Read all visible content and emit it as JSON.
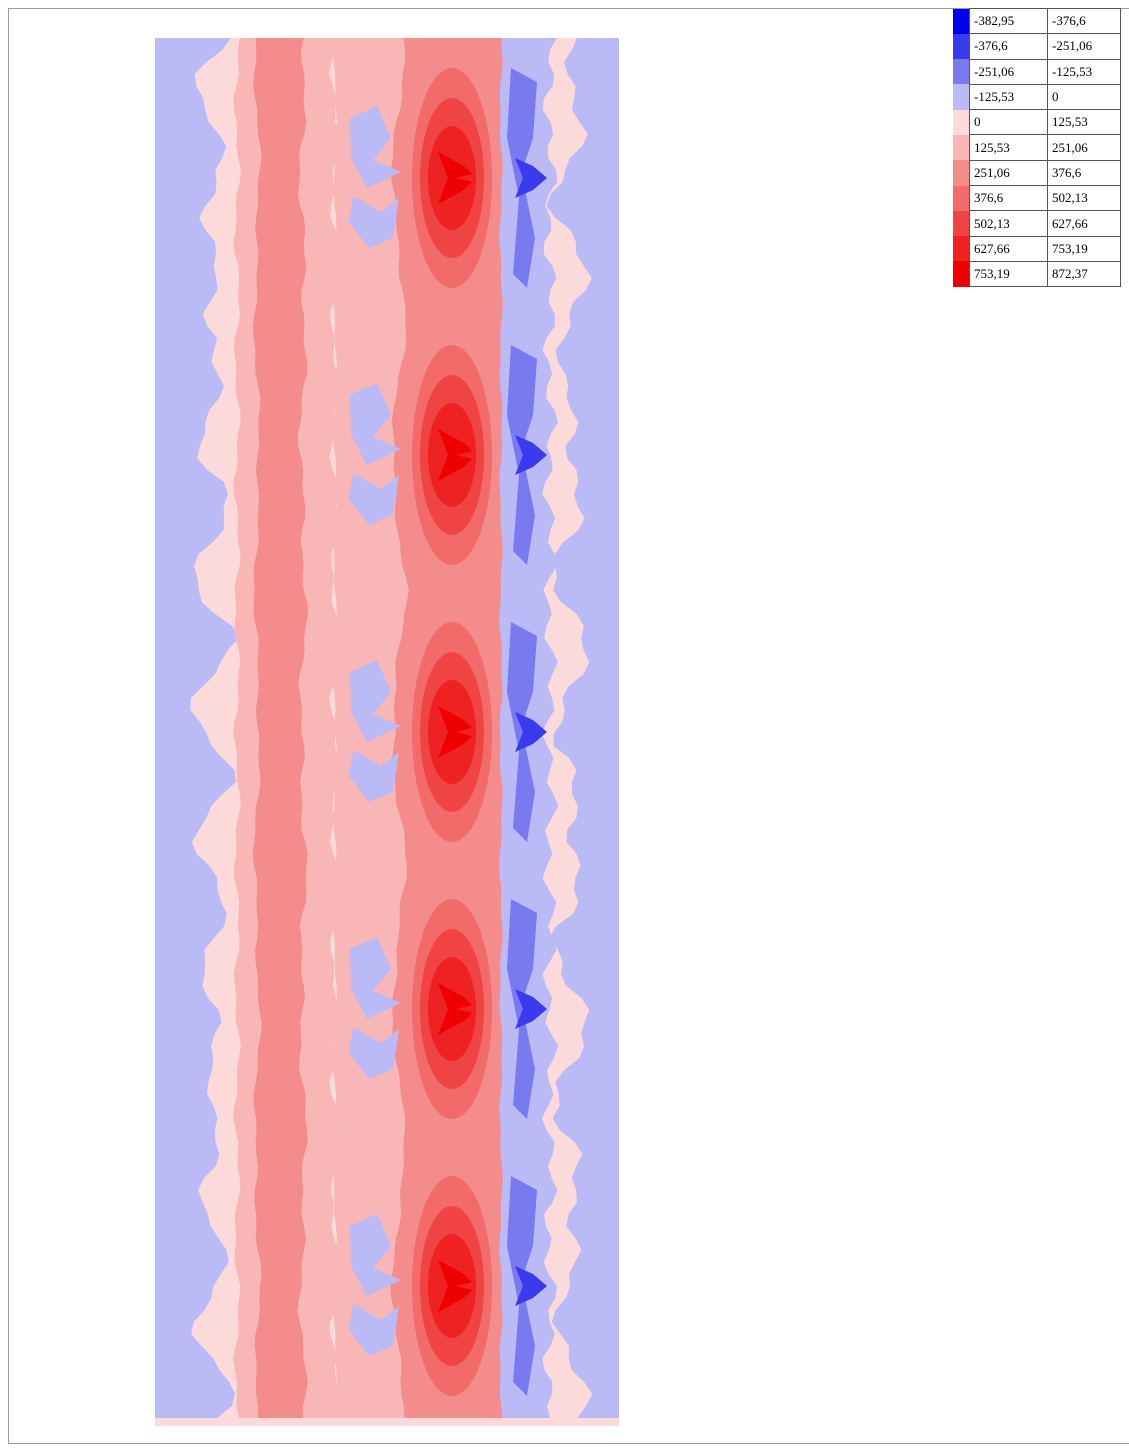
{
  "legend": {
    "rows": [
      {
        "color": "#0000ee",
        "from": "-382,95",
        "to": "-376,6"
      },
      {
        "color": "#3a3aee",
        "from": "-376,6",
        "to": "-251,06"
      },
      {
        "color": "#7a7af0",
        "from": "-251,06",
        "to": "-125,53"
      },
      {
        "color": "#babaf6",
        "from": "-125,53",
        "to": "0"
      },
      {
        "color": "#fcdada",
        "from": "0",
        "to": "125,53"
      },
      {
        "color": "#f8b6b6",
        "from": "125,53",
        "to": "251,06"
      },
      {
        "color": "#f48c8c",
        "from": "251,06",
        "to": "376,6"
      },
      {
        "color": "#f26a6a",
        "from": "376,6",
        "to": "502,13"
      },
      {
        "color": "#f04444",
        "from": "502,13",
        "to": "627,66"
      },
      {
        "color": "#ee2222",
        "from": "627,66",
        "to": "753,19"
      },
      {
        "color": "#ee0000",
        "from": "753,19",
        "to": "872,37"
      }
    ]
  },
  "contour": {
    "peak_count": 5,
    "colors": {
      "neg3": "#0000ee",
      "neg2": "#3a3aee",
      "neg1": "#7a7af0",
      "neg0": "#babaf6",
      "pos0": "#fcdada",
      "pos1": "#f8b6b6",
      "pos2": "#f48c8c",
      "pos3": "#f26a6a",
      "pos4": "#f04444",
      "pos5": "#ee2222",
      "pos6": "#ee0000"
    }
  }
}
